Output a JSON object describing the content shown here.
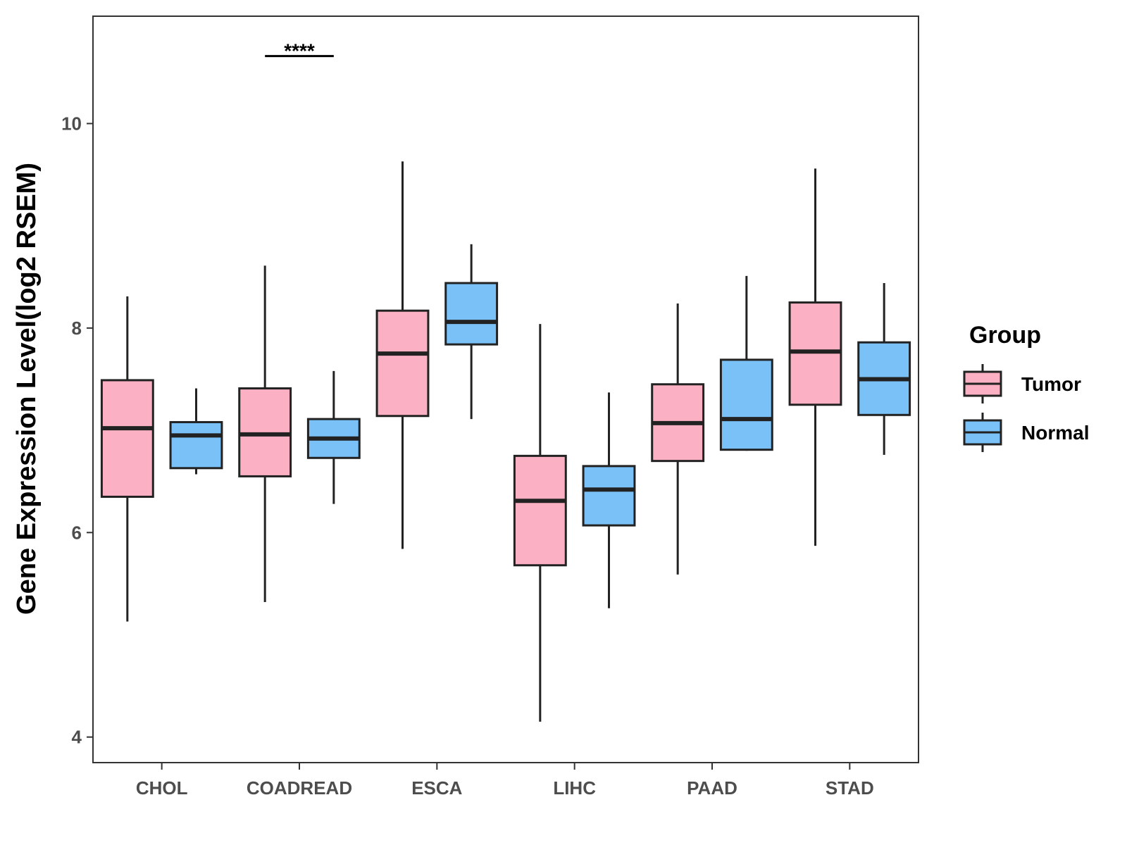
{
  "chart_data": {
    "type": "boxplot",
    "title": "",
    "xlabel": "",
    "ylabel": "Gene Expression Level(log2 RSEM)",
    "ylim": [
      3.75,
      11.05
    ],
    "yticks": [
      4,
      6,
      8,
      10
    ],
    "categories": [
      "CHOL",
      "COADREAD",
      "ESCA",
      "LIHC",
      "PAAD",
      "STAD"
    ],
    "legend": {
      "title": "Group",
      "position": "right"
    },
    "grid": false,
    "series": [
      {
        "name": "Tumor",
        "color": "#fbb1c3",
        "boxes": [
          {
            "whisker_low": 5.13,
            "q1": 6.35,
            "median": 7.02,
            "q3": 7.49,
            "whisker_high": 8.31
          },
          {
            "whisker_low": 5.32,
            "q1": 6.55,
            "median": 6.96,
            "q3": 7.41,
            "whisker_high": 8.61
          },
          {
            "whisker_low": 5.84,
            "q1": 7.14,
            "median": 7.75,
            "q3": 8.17,
            "whisker_high": 9.63
          },
          {
            "whisker_low": 4.15,
            "q1": 5.68,
            "median": 6.31,
            "q3": 6.75,
            "whisker_high": 8.04
          },
          {
            "whisker_low": 5.59,
            "q1": 6.7,
            "median": 7.07,
            "q3": 7.45,
            "whisker_high": 8.24
          },
          {
            "whisker_low": 5.87,
            "q1": 7.25,
            "median": 7.77,
            "q3": 8.25,
            "whisker_high": 9.56
          }
        ]
      },
      {
        "name": "Normal",
        "color": "#79c1f7",
        "boxes": [
          {
            "whisker_low": 6.57,
            "q1": 6.63,
            "median": 6.95,
            "q3": 7.08,
            "whisker_high": 7.41
          },
          {
            "whisker_low": 6.28,
            "q1": 6.73,
            "median": 6.92,
            "q3": 7.11,
            "whisker_high": 7.58
          },
          {
            "whisker_low": 7.11,
            "q1": 7.84,
            "median": 8.06,
            "q3": 8.44,
            "whisker_high": 8.82
          },
          {
            "whisker_low": 5.26,
            "q1": 6.07,
            "median": 6.42,
            "q3": 6.65,
            "whisker_high": 7.37
          },
          {
            "whisker_low": 6.8,
            "q1": 6.81,
            "median": 7.11,
            "q3": 7.69,
            "whisker_high": 8.51
          },
          {
            "whisker_low": 6.76,
            "q1": 7.15,
            "median": 7.5,
            "q3": 7.86,
            "whisker_high": 8.44
          }
        ]
      }
    ],
    "annotations": [
      {
        "category": "COADREAD",
        "text": "****",
        "y": 10.66
      }
    ]
  }
}
